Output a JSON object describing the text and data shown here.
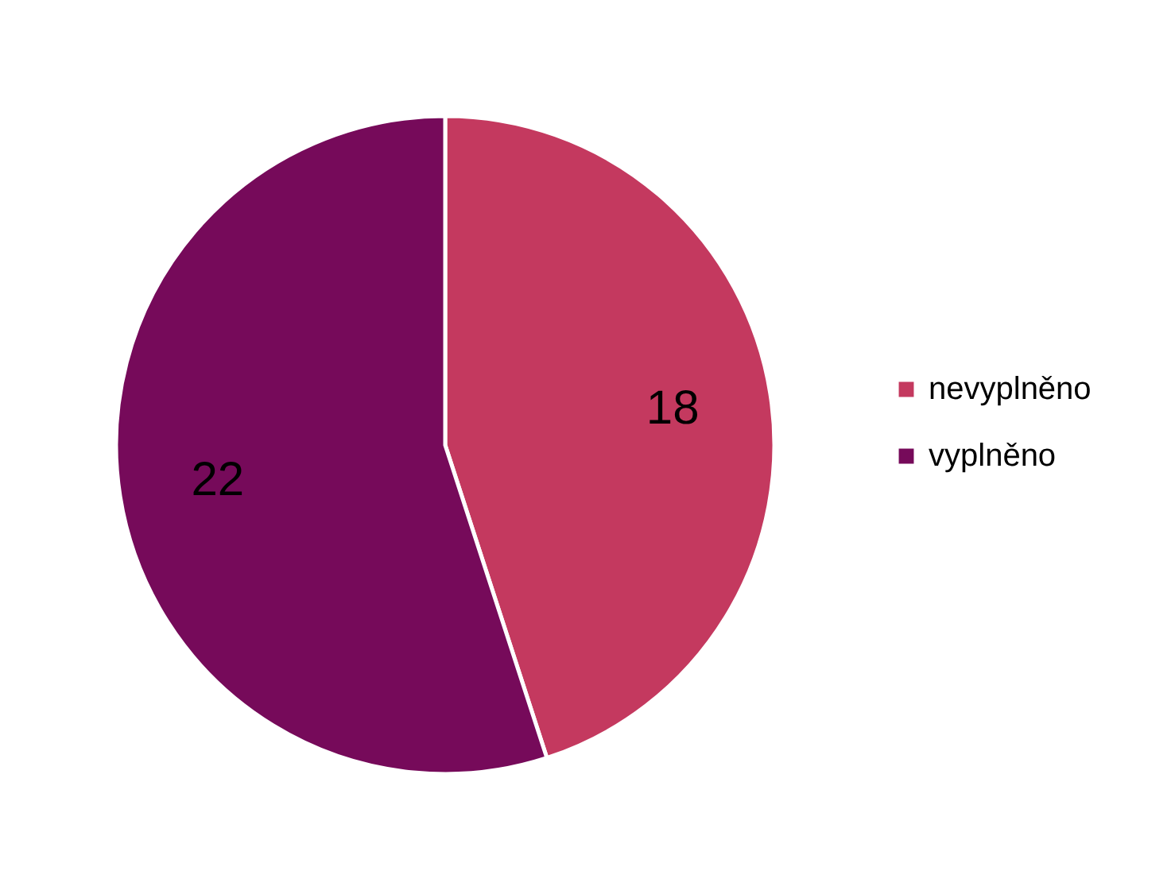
{
  "chart_data": {
    "type": "pie",
    "categories": [
      "nevyplněno",
      "vyplněno"
    ],
    "values": [
      18,
      22
    ],
    "colors": [
      "#c4395f",
      "#760a5a"
    ],
    "data_labels": true,
    "legend": "right"
  }
}
